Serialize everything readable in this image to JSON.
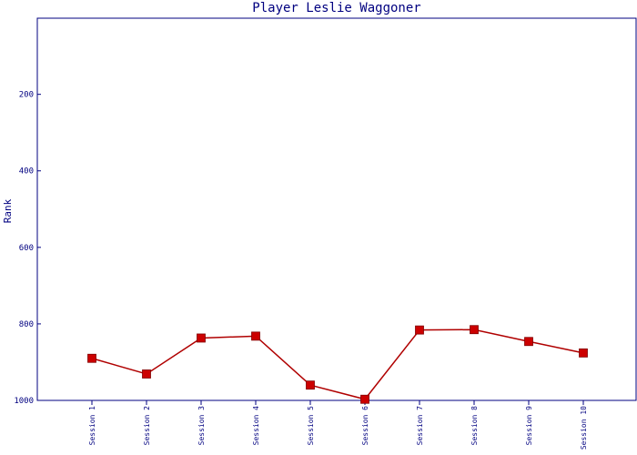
{
  "chart_data": {
    "type": "line",
    "title": "Player Leslie Waggoner",
    "xlabel": "",
    "ylabel": "Rank",
    "categories": [
      "Session 1",
      "Session 2",
      "Session 3",
      "Session 4",
      "Session 5",
      "Session 6",
      "Session 7",
      "Session 8",
      "Session 9",
      "Session 10"
    ],
    "series": [
      {
        "values": [
          890,
          931,
          837,
          832,
          960,
          997,
          816,
          815,
          846,
          876
        ]
      }
    ],
    "y_ticks": [
      200,
      400,
      600,
      800,
      1000
    ],
    "ylim": [
      1,
      1000
    ],
    "y_inverted": true,
    "grid": false,
    "colors": {
      "line": "#b00000",
      "marker": "#cc0000",
      "axis": "#000080",
      "text": "#000080"
    }
  }
}
